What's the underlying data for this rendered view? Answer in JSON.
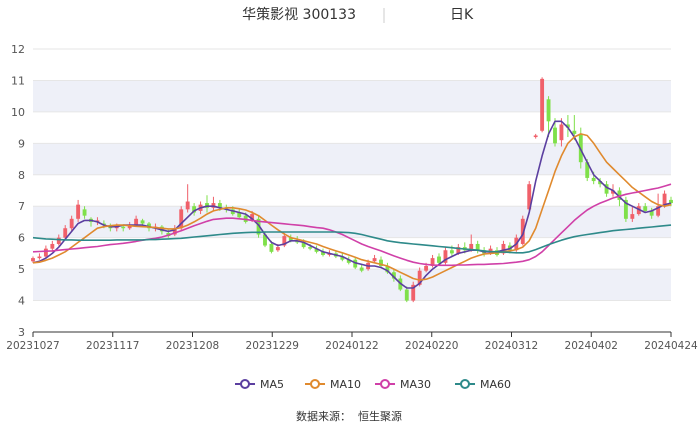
{
  "header": {
    "stock_title": "华策影视 300133",
    "period_label": "日K"
  },
  "source": {
    "label": "数据来源：",
    "value": "恒生聚源"
  },
  "colors": {
    "up": "#f0606a",
    "down": "#7fe04a",
    "ma5": "#5b3fa0",
    "ma10": "#e08a2e",
    "ma30": "#d040a8",
    "ma60": "#2e8a8a",
    "grid": "#e6e6e6",
    "band": "#eef0f8"
  },
  "chart_data": {
    "type": "candlestick",
    "yticks": [
      3,
      4,
      5,
      6,
      7,
      8,
      9,
      10,
      11,
      12
    ],
    "ylim": [
      3,
      12
    ],
    "x_labels": [
      "20231027",
      "20231117",
      "20231208",
      "20231229",
      "20240122",
      "20240220",
      "20240312",
      "20240402",
      "20240424"
    ],
    "legend": [
      {
        "name": "MA5",
        "color_key": "ma5"
      },
      {
        "name": "MA10",
        "color_key": "ma10"
      },
      {
        "name": "MA30",
        "color_key": "ma30"
      },
      {
        "name": "MA60",
        "color_key": "ma60"
      }
    ],
    "candles": [
      [
        5.25,
        5.35,
        5.2,
        5.4
      ],
      [
        5.35,
        5.4,
        5.3,
        5.5
      ],
      [
        5.4,
        5.65,
        5.35,
        5.75
      ],
      [
        5.65,
        5.8,
        5.55,
        5.9
      ],
      [
        5.8,
        6.0,
        5.75,
        6.1
      ],
      [
        6.0,
        6.3,
        5.95,
        6.4
      ],
      [
        6.3,
        6.6,
        6.2,
        6.7
      ],
      [
        6.6,
        7.05,
        6.5,
        7.2
      ],
      [
        6.9,
        6.7,
        6.6,
        7.0
      ],
      [
        6.6,
        6.5,
        6.35,
        6.65
      ],
      [
        6.5,
        6.55,
        6.4,
        6.65
      ],
      [
        6.45,
        6.4,
        6.3,
        6.55
      ],
      [
        6.4,
        6.3,
        6.2,
        6.45
      ],
      [
        6.3,
        6.35,
        6.2,
        6.45
      ],
      [
        6.35,
        6.3,
        6.2,
        6.4
      ],
      [
        6.3,
        6.4,
        6.25,
        6.5
      ],
      [
        6.4,
        6.6,
        6.35,
        6.7
      ],
      [
        6.55,
        6.45,
        6.35,
        6.6
      ],
      [
        6.45,
        6.3,
        6.2,
        6.5
      ],
      [
        6.3,
        6.35,
        6.2,
        6.45
      ],
      [
        6.35,
        6.2,
        6.1,
        6.4
      ],
      [
        6.15,
        6.05,
        6.0,
        6.25
      ],
      [
        6.1,
        6.3,
        6.05,
        6.4
      ],
      [
        6.3,
        6.9,
        6.2,
        7.0
      ],
      [
        6.9,
        7.15,
        6.8,
        7.7
      ],
      [
        7.0,
        6.8,
        6.7,
        7.1
      ],
      [
        6.85,
        7.05,
        6.75,
        7.15
      ],
      [
        7.1,
        6.95,
        6.8,
        7.35
      ],
      [
        6.95,
        7.1,
        6.85,
        7.3
      ],
      [
        7.1,
        6.95,
        6.85,
        7.2
      ],
      [
        6.95,
        6.9,
        6.8,
        7.05
      ],
      [
        6.9,
        6.75,
        6.7,
        7.0
      ],
      [
        6.8,
        6.65,
        6.6,
        6.9
      ],
      [
        6.7,
        6.5,
        6.45,
        6.8
      ],
      [
        6.55,
        6.75,
        6.5,
        6.85
      ],
      [
        6.6,
        6.1,
        6.0,
        6.7
      ],
      [
        6.1,
        5.75,
        5.7,
        6.2
      ],
      [
        5.8,
        5.55,
        5.5,
        5.9
      ],
      [
        5.6,
        5.7,
        5.55,
        5.8
      ],
      [
        5.75,
        6.05,
        5.7,
        6.15
      ],
      [
        6.0,
        5.9,
        5.85,
        6.1
      ],
      [
        5.9,
        5.85,
        5.8,
        6.05
      ],
      [
        5.85,
        5.7,
        5.65,
        5.95
      ],
      [
        5.7,
        5.65,
        5.6,
        5.8
      ],
      [
        5.65,
        5.55,
        5.5,
        5.75
      ],
      [
        5.55,
        5.45,
        5.4,
        5.65
      ],
      [
        5.45,
        5.5,
        5.4,
        5.6
      ],
      [
        5.5,
        5.4,
        5.35,
        5.6
      ],
      [
        5.4,
        5.3,
        5.25,
        5.5
      ],
      [
        5.3,
        5.2,
        5.15,
        5.4
      ],
      [
        5.3,
        5.05,
        5.0,
        5.4
      ],
      [
        5.05,
        4.95,
        4.9,
        5.15
      ],
      [
        5.0,
        5.2,
        4.95,
        5.3
      ],
      [
        5.25,
        5.35,
        5.2,
        5.45
      ],
      [
        5.3,
        5.1,
        5.05,
        5.4
      ],
      [
        5.1,
        4.9,
        4.85,
        5.2
      ],
      [
        4.9,
        4.7,
        4.6,
        5.0
      ],
      [
        4.7,
        4.35,
        4.3,
        4.8
      ],
      [
        4.35,
        4.0,
        3.95,
        4.45
      ],
      [
        4.0,
        4.5,
        3.95,
        4.6
      ],
      [
        4.5,
        4.95,
        4.45,
        5.05
      ],
      [
        4.95,
        5.1,
        4.9,
        5.2
      ],
      [
        5.1,
        5.35,
        5.05,
        5.45
      ],
      [
        5.4,
        5.2,
        5.1,
        5.5
      ],
      [
        5.2,
        5.6,
        5.15,
        5.7
      ],
      [
        5.6,
        5.5,
        5.4,
        5.75
      ],
      [
        5.5,
        5.7,
        5.45,
        5.8
      ],
      [
        5.7,
        5.6,
        5.5,
        5.85
      ],
      [
        5.6,
        5.8,
        5.55,
        6.1
      ],
      [
        5.8,
        5.6,
        5.5,
        5.9
      ],
      [
        5.6,
        5.5,
        5.4,
        5.7
      ],
      [
        5.5,
        5.65,
        5.45,
        5.75
      ],
      [
        5.6,
        5.45,
        5.4,
        5.7
      ],
      [
        5.5,
        5.8,
        5.45,
        5.9
      ],
      [
        5.75,
        5.6,
        5.5,
        5.85
      ],
      [
        5.6,
        6.0,
        5.55,
        6.1
      ],
      [
        5.8,
        6.6,
        5.75,
        6.7
      ],
      [
        6.9,
        7.7,
        6.85,
        7.8
      ],
      [
        9.2,
        9.25,
        9.15,
        9.3
      ],
      [
        9.4,
        11.05,
        9.35,
        11.1
      ],
      [
        10.4,
        9.7,
        9.2,
        10.5
      ],
      [
        9.5,
        9.0,
        8.9,
        9.8
      ],
      [
        9.1,
        9.6,
        8.9,
        9.8
      ],
      [
        9.6,
        9.5,
        9.2,
        9.9
      ],
      [
        9.4,
        9.3,
        9.1,
        9.9
      ],
      [
        9.3,
        8.4,
        8.2,
        9.5
      ],
      [
        8.4,
        7.9,
        7.8,
        8.5
      ],
      [
        7.9,
        7.8,
        7.7,
        8.1
      ],
      [
        7.8,
        7.7,
        7.6,
        7.9
      ],
      [
        7.7,
        7.4,
        7.3,
        7.8
      ],
      [
        7.4,
        7.5,
        7.3,
        7.7
      ],
      [
        7.5,
        7.2,
        7.0,
        7.6
      ],
      [
        7.2,
        6.6,
        6.5,
        7.3
      ],
      [
        6.6,
        6.75,
        6.5,
        7.0
      ],
      [
        6.75,
        7.0,
        6.7,
        7.1
      ],
      [
        7.0,
        6.85,
        6.8,
        7.1
      ],
      [
        6.85,
        6.7,
        6.6,
        6.95
      ],
      [
        6.7,
        7.0,
        6.65,
        7.4
      ],
      [
        7.0,
        7.4,
        6.95,
        7.5
      ],
      [
        7.2,
        7.1,
        7.0,
        7.3
      ]
    ],
    "ma_series": {
      "MA5": [
        5.2,
        5.25,
        5.35,
        5.5,
        5.7,
        5.95,
        6.2,
        6.45,
        6.55,
        6.55,
        6.5,
        6.4,
        6.35,
        6.35,
        6.4,
        6.4,
        6.4,
        6.4,
        6.35,
        6.3,
        6.25,
        6.2,
        6.25,
        6.45,
        6.65,
        6.85,
        6.95,
        7.0,
        7.0,
        6.95,
        6.9,
        6.85,
        6.8,
        6.75,
        6.6,
        6.4,
        6.1,
        5.85,
        5.75,
        5.8,
        5.9,
        5.9,
        5.85,
        5.75,
        5.65,
        5.55,
        5.5,
        5.45,
        5.4,
        5.3,
        5.2,
        5.15,
        5.1,
        5.1,
        5.05,
        4.95,
        4.75,
        4.55,
        4.4,
        4.4,
        4.55,
        4.8,
        5.0,
        5.15,
        5.3,
        5.4,
        5.5,
        5.55,
        5.6,
        5.6,
        5.55,
        5.55,
        5.55,
        5.6,
        5.65,
        5.8,
        6.1,
        6.8,
        7.8,
        8.6,
        9.3,
        9.7,
        9.7,
        9.5,
        9.2,
        8.8,
        8.4,
        8.0,
        7.8,
        7.6,
        7.5,
        7.3,
        7.1,
        7.0,
        6.9,
        6.8,
        6.85,
        6.95,
        7.05,
        7.1
      ],
      "MA10": [
        5.2,
        5.22,
        5.28,
        5.35,
        5.45,
        5.55,
        5.7,
        5.85,
        6.0,
        6.15,
        6.3,
        6.35,
        6.38,
        6.4,
        6.4,
        6.38,
        6.36,
        6.35,
        6.34,
        6.32,
        6.3,
        6.28,
        6.28,
        6.32,
        6.4,
        6.5,
        6.62,
        6.75,
        6.85,
        6.9,
        6.95,
        6.95,
        6.92,
        6.88,
        6.8,
        6.7,
        6.55,
        6.4,
        6.25,
        6.12,
        6.0,
        5.95,
        5.9,
        5.85,
        5.8,
        5.72,
        5.65,
        5.58,
        5.52,
        5.45,
        5.38,
        5.3,
        5.25,
        5.2,
        5.15,
        5.1,
        5.0,
        4.9,
        4.8,
        4.7,
        4.65,
        4.68,
        4.75,
        4.85,
        4.95,
        5.05,
        5.15,
        5.25,
        5.35,
        5.42,
        5.48,
        5.5,
        5.52,
        5.55,
        5.58,
        5.62,
        5.7,
        5.9,
        6.3,
        6.9,
        7.5,
        8.1,
        8.6,
        9.0,
        9.2,
        9.3,
        9.25,
        9.0,
        8.7,
        8.4,
        8.2,
        8.0,
        7.8,
        7.6,
        7.45,
        7.3,
        7.15,
        7.05,
        7.0,
        7.05
      ],
      "MA30": [
        5.55,
        5.56,
        5.57,
        5.58,
        5.6,
        5.62,
        5.64,
        5.66,
        5.68,
        5.7,
        5.72,
        5.75,
        5.78,
        5.8,
        5.82,
        5.85,
        5.88,
        5.92,
        5.95,
        5.98,
        6.02,
        6.08,
        6.15,
        6.22,
        6.3,
        6.38,
        6.45,
        6.52,
        6.58,
        6.6,
        6.62,
        6.62,
        6.6,
        6.58,
        6.55,
        6.52,
        6.5,
        6.48,
        6.46,
        6.44,
        6.42,
        6.4,
        6.38,
        6.35,
        6.32,
        6.3,
        6.25,
        6.18,
        6.1,
        6.0,
        5.9,
        5.8,
        5.72,
        5.65,
        5.58,
        5.5,
        5.42,
        5.35,
        5.28,
        5.22,
        5.18,
        5.15,
        5.13,
        5.12,
        5.12,
        5.12,
        5.13,
        5.13,
        5.14,
        5.15,
        5.15,
        5.16,
        5.17,
        5.18,
        5.2,
        5.22,
        5.25,
        5.3,
        5.4,
        5.55,
        5.75,
        5.95,
        6.15,
        6.35,
        6.55,
        6.72,
        6.88,
        7.0,
        7.1,
        7.18,
        7.26,
        7.32,
        7.38,
        7.42,
        7.46,
        7.5,
        7.54,
        7.58,
        7.64,
        7.7
      ],
      "MA60": [
        6.0,
        5.98,
        5.96,
        5.95,
        5.94,
        5.93,
        5.93,
        5.92,
        5.92,
        5.92,
        5.92,
        5.92,
        5.92,
        5.93,
        5.93,
        5.93,
        5.93,
        5.93,
        5.94,
        5.94,
        5.95,
        5.96,
        5.97,
        5.98,
        6.0,
        6.02,
        6.04,
        6.06,
        6.08,
        6.1,
        6.12,
        6.14,
        6.15,
        6.16,
        6.17,
        6.17,
        6.18,
        6.18,
        6.18,
        6.18,
        6.18,
        6.18,
        6.18,
        6.18,
        6.18,
        6.18,
        6.18,
        6.18,
        6.17,
        6.16,
        6.14,
        6.1,
        6.05,
        6.0,
        5.95,
        5.9,
        5.87,
        5.84,
        5.82,
        5.8,
        5.78,
        5.76,
        5.74,
        5.72,
        5.7,
        5.68,
        5.66,
        5.64,
        5.62,
        5.6,
        5.58,
        5.56,
        5.55,
        5.54,
        5.53,
        5.52,
        5.52,
        5.55,
        5.62,
        5.7,
        5.78,
        5.85,
        5.92,
        5.98,
        6.03,
        6.07,
        6.1,
        6.13,
        6.16,
        6.19,
        6.22,
        6.24,
        6.26,
        6.28,
        6.3,
        6.32,
        6.34,
        6.36,
        6.38,
        6.4
      ]
    }
  }
}
